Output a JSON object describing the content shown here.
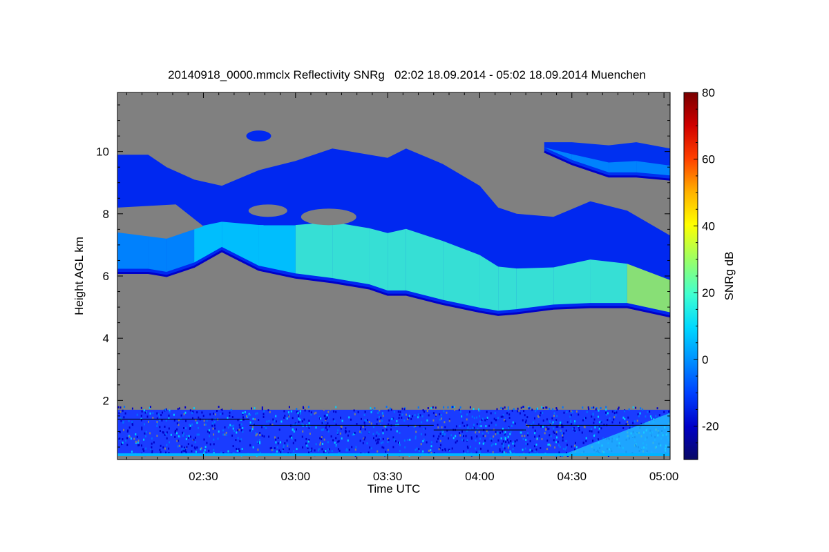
{
  "chart_data": {
    "type": "heatmap",
    "title": "20140918_0000.mmclx Reflectivity SNRg   02:02 18.09.2014 - 05:02 18.09.2014 Muenchen",
    "xlabel": "Time UTC",
    "ylabel": "Height AGL km",
    "colorbar_label": "SNRg dB",
    "x_range_hours": [
      2.0333,
      5.0333
    ],
    "y_range_km": [
      0.1,
      11.9
    ],
    "x_ticks": [
      {
        "label": "02:30",
        "hours": 2.5
      },
      {
        "label": "03:00",
        "hours": 3.0
      },
      {
        "label": "03:30",
        "hours": 3.5
      },
      {
        "label": "04:00",
        "hours": 4.0
      },
      {
        "label": "04:30",
        "hours": 4.5
      },
      {
        "label": "05:00",
        "hours": 5.0
      }
    ],
    "y_ticks": [
      {
        "label": "2",
        "km": 2
      },
      {
        "label": "4",
        "km": 4
      },
      {
        "label": "6",
        "km": 6
      },
      {
        "label": "8",
        "km": 8
      },
      {
        "label": "10",
        "km": 10
      }
    ],
    "colorbar_range_db": [
      -30,
      80
    ],
    "colorbar_ticks": [
      {
        "label": "-20",
        "db": -20
      },
      {
        "label": "0",
        "db": 0
      },
      {
        "label": "20",
        "db": 20
      },
      {
        "label": "40",
        "db": 40
      },
      {
        "label": "60",
        "db": 60
      },
      {
        "label": "80",
        "db": 80
      }
    ],
    "colors": {
      "background": "#808080",
      "colormap": [
        "#0a0a64",
        "#0000c8",
        "#0040ff",
        "#0090ff",
        "#00d8ff",
        "#40ffd0",
        "#a0ff60",
        "#ffff00",
        "#ffb000",
        "#ff4000",
        "#d00000",
        "#780000"
      ]
    },
    "cloud_layer": {
      "description": "upper cloud layer base and top heights (km) vs time (hours UTC)",
      "time_hours": [
        2.0333,
        2.2,
        2.3,
        2.45,
        2.6,
        2.8,
        3.0,
        3.2,
        3.4,
        3.5,
        3.6,
        3.8,
        4.0,
        4.1,
        4.2,
        4.4,
        4.6,
        4.8,
        5.0333
      ],
      "base_km": [
        6.1,
        6.1,
        6.0,
        6.3,
        6.8,
        6.2,
        5.95,
        5.8,
        5.6,
        5.4,
        5.4,
        5.1,
        4.85,
        4.75,
        4.8,
        4.95,
        5.0,
        5.0,
        4.7
      ],
      "top_km": [
        9.9,
        9.9,
        9.5,
        9.1,
        8.9,
        9.4,
        9.7,
        10.1,
        9.9,
        9.8,
        10.1,
        9.6,
        8.9,
        8.2,
        8.0,
        7.9,
        8.4,
        8.1,
        7.3
      ],
      "peak_snr_db": [
        2,
        3,
        3,
        4,
        8,
        12,
        16,
        18,
        19,
        17,
        20,
        22,
        23,
        19,
        16,
        17,
        18,
        26,
        24
      ]
    },
    "high_cloud": {
      "description": "separate high cloud patch",
      "time_hours": [
        4.35,
        4.5,
        4.7,
        4.85,
        5.0333
      ],
      "base_km": [
        10.0,
        9.6,
        9.2,
        9.2,
        9.1
      ],
      "top_km": [
        10.3,
        10.3,
        10.2,
        10.3,
        10.1
      ],
      "peak_snr_db": [
        -5,
        -2,
        -1,
        0,
        1
      ]
    },
    "boundary_layer": {
      "description": "low-level clutter/boundary layer echoes",
      "base_km": 0.25,
      "top_km": 1.7,
      "line_heights_km": [
        {
          "from_hours": 2.0333,
          "to_hours": 2.75,
          "km": 1.4
        },
        {
          "from_hours": 2.75,
          "to_hours": 3.75,
          "km": 1.2
        },
        {
          "from_hours": 3.75,
          "to_hours": 4.25,
          "km": 1.05
        },
        {
          "from_hours": 4.25,
          "to_hours": 5.0333,
          "km": 1.2
        }
      ]
    }
  }
}
